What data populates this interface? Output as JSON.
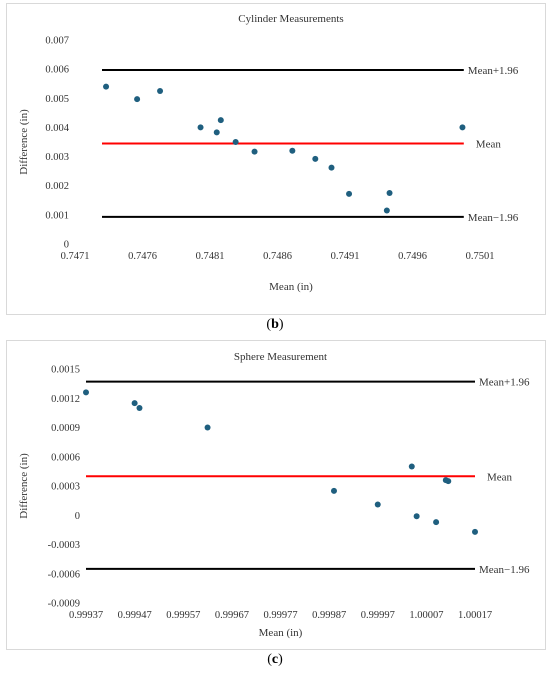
{
  "captions": {
    "b": "b",
    "c": "c"
  },
  "chart_data": [
    {
      "type": "scatter",
      "title": "Cylinder Measurements",
      "xlabel": "Mean (in)",
      "ylabel": "Difference (in)",
      "xlim": [
        0.7471,
        0.7503
      ],
      "ylim": [
        0,
        0.007
      ],
      "x_ticks": [
        "0.7471",
        "0.7476",
        "0.7481",
        "0.7486",
        "0.7491",
        "0.7496",
        "0.7501"
      ],
      "y_ticks": [
        "0",
        "0.001",
        "0.002",
        "0.003",
        "0.004",
        "0.005",
        "0.006",
        "0.007"
      ],
      "points": [
        {
          "x": 0.74733,
          "y": 0.0054
        },
        {
          "x": 0.74756,
          "y": 0.00497
        },
        {
          "x": 0.74773,
          "y": 0.00525
        },
        {
          "x": 0.74803,
          "y": 0.004
        },
        {
          "x": 0.74815,
          "y": 0.00383
        },
        {
          "x": 0.74818,
          "y": 0.00425
        },
        {
          "x": 0.74829,
          "y": 0.0035
        },
        {
          "x": 0.74843,
          "y": 0.00317
        },
        {
          "x": 0.74871,
          "y": 0.0032
        },
        {
          "x": 0.74888,
          "y": 0.00292
        },
        {
          "x": 0.749,
          "y": 0.00262
        },
        {
          "x": 0.74913,
          "y": 0.00172
        },
        {
          "x": 0.74941,
          "y": 0.00115
        },
        {
          "x": 0.74943,
          "y": 0.00175
        },
        {
          "x": 0.74997,
          "y": 0.004
        }
      ],
      "reference_lines": [
        {
          "label": "Mean+1.96",
          "y": 0.00597,
          "x_start": 0.7473,
          "x_end": 0.74998,
          "color": "#000000"
        },
        {
          "label": "Mean",
          "y": 0.00345,
          "x_start": 0.7473,
          "x_end": 0.74998,
          "color": "#ff0000"
        },
        {
          "label": "Mean−1.96",
          "y": 0.00093,
          "x_start": 0.7473,
          "x_end": 0.74998,
          "color": "#000000"
        }
      ],
      "point_color": "#1f5f7f",
      "grid": false
    },
    {
      "type": "scatter",
      "title": "Sphere Measurement",
      "xlabel": "Mean (in)",
      "ylabel": "Difference (in)",
      "xlim": [
        0.99937,
        1.00017
      ],
      "ylim": [
        -0.0009,
        0.0015
      ],
      "x_ticks": [
        "0.99937",
        "0.99947",
        "0.99957",
        "0.99967",
        "0.99977",
        "0.99987",
        "0.99997",
        "1.00007",
        "1.00017"
      ],
      "y_ticks": [
        "-0.0009",
        "-0.0006",
        "-0.0003",
        "0",
        "0.0003",
        "0.0006",
        "0.0009",
        "0.0012",
        "0.0015"
      ],
      "points": [
        {
          "x": 0.99937,
          "y": 0.00126
        },
        {
          "x": 0.99947,
          "y": 0.00115
        },
        {
          "x": 0.99948,
          "y": 0.0011
        },
        {
          "x": 0.99962,
          "y": 0.0009
        },
        {
          "x": 0.99988,
          "y": 0.00025
        },
        {
          "x": 0.99997,
          "y": 0.00011
        },
        {
          "x": 1.00004,
          "y": 0.0005
        },
        {
          "x": 1.00005,
          "y": -1e-05
        },
        {
          "x": 1.00009,
          "y": -7e-05
        },
        {
          "x": 1.00011,
          "y": 0.00036
        },
        {
          "x": 1.000115,
          "y": 0.00035
        },
        {
          "x": 1.00017,
          "y": -0.00017
        }
      ],
      "reference_lines": [
        {
          "label": "Mean+1.96",
          "y": 0.00137,
          "x_start": 0.99937,
          "x_end": 1.00017,
          "color": "#000000"
        },
        {
          "label": "Mean",
          "y": 0.0004,
          "x_start": 0.99937,
          "x_end": 1.00017,
          "color": "#ff0000"
        },
        {
          "label": "Mean−1.96",
          "y": -0.00055,
          "x_start": 0.99937,
          "x_end": 1.00017,
          "color": "#000000"
        }
      ],
      "point_color": "#1f5f7f",
      "grid": false
    }
  ]
}
